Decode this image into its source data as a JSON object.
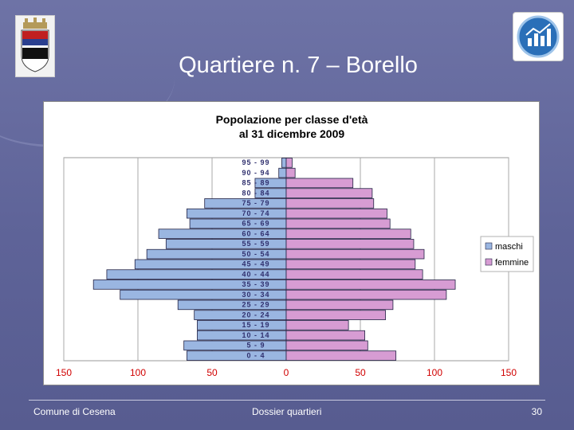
{
  "slide": {
    "title": "Quartiere n. 7 – Borello",
    "footer_left": "Comune di Cesena",
    "footer_center": "Dossier quartieri",
    "page_number": "30"
  },
  "logos": {
    "left": "cesena-coat-of-arms",
    "right": "dossier-chart-logo"
  },
  "colors": {
    "maschi": "#9ab6e1",
    "femmine": "#d79cd3",
    "bar_border": "#222244",
    "axis_text": "#d00000",
    "age_text": "#30306e"
  },
  "chart_data": {
    "type": "bar",
    "orientation": "horizontal-pyramid",
    "title": "Popolazione per classe d'età",
    "subtitle": "al 31 dicembre 2009",
    "categories": [
      "0 - 4",
      "5 - 9",
      "10 - 14",
      "15 - 19",
      "20 - 24",
      "25 - 29",
      "30 - 34",
      "35 - 39",
      "40 - 44",
      "45 - 49",
      "50 - 54",
      "55 - 59",
      "60 - 64",
      "65 - 69",
      "70 - 74",
      "75 - 79",
      "80 - 84",
      "85 - 89",
      "90 - 94",
      "95 - 99"
    ],
    "series": [
      {
        "name": "maschi",
        "values": [
          -67,
          -69,
          -60,
          -60,
          -62,
          -73,
          -112,
          -130,
          -121,
          -102,
          -94,
          -81,
          -86,
          -65,
          -67,
          -55,
          -21,
          -21,
          -5,
          -3
        ]
      },
      {
        "name": "femmine",
        "values": [
          74,
          55,
          53,
          42,
          67,
          72,
          108,
          114,
          92,
          87,
          93,
          86,
          84,
          70,
          68,
          59,
          58,
          45,
          6,
          4
        ]
      }
    ],
    "xticks": [
      150,
      100,
      50,
      0,
      50,
      100,
      150
    ],
    "xlim": [
      -150,
      150
    ],
    "grid": true,
    "legend": "right"
  }
}
